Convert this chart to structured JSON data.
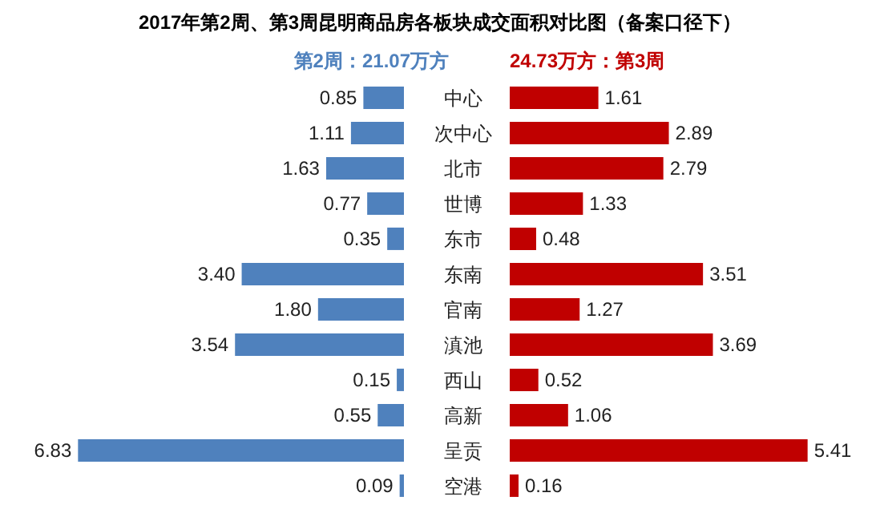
{
  "chart_data": [
    {
      "type": "bar",
      "orientation": "horizontal",
      "title": "2017年第2周、第3周昆明商品房各板块成交面积对比图（备案口径下）",
      "categories": [
        "中心",
        "次中心",
        "北市",
        "世博",
        "东市",
        "东南",
        "官南",
        "滇池",
        "西山",
        "高新",
        "呈贡",
        "空港"
      ],
      "series": [
        {
          "name": "第2周：21.07万方",
          "color": "#4f81bd",
          "values": [
            0.85,
            1.11,
            1.63,
            0.77,
            0.35,
            3.4,
            1.8,
            3.54,
            0.15,
            0.55,
            6.83,
            0.09
          ],
          "value_labels": [
            "0.85",
            "1.11",
            "1.63",
            "0.77",
            "0.35",
            "3.40",
            "1.80",
            "3.54",
            "0.15",
            "0.55",
            "6.83",
            "0.09"
          ]
        }
      ]
    },
    {
      "type": "bar",
      "orientation": "horizontal",
      "categories": [
        null,
        null,
        null,
        null,
        null,
        null,
        null,
        null,
        null,
        null,
        null,
        null
      ],
      "series": [
        {
          "name": "24.73万方：第3周",
          "color": "#c00000",
          "values": [
            1.61,
            2.89,
            2.79,
            1.33,
            0.48,
            3.51,
            1.27,
            3.69,
            0.52,
            1.06,
            5.41,
            0.16
          ]
        }
      ],
      "data_labels": true
    }
  ]
}
